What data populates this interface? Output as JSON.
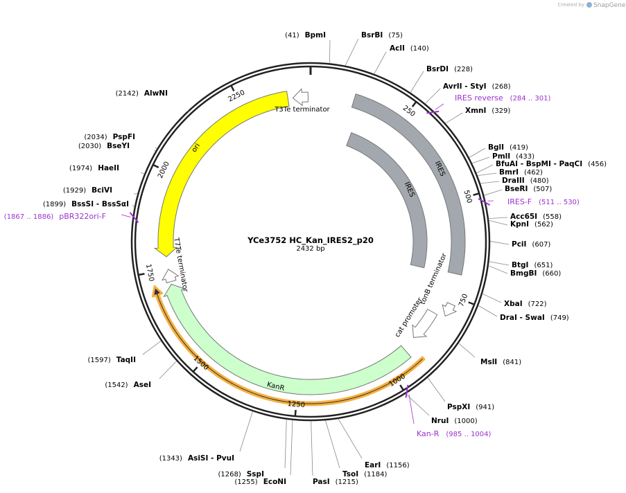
{
  "watermark": "Created by",
  "brand": "SnapGene",
  "title": "YCe3752 HC_Kan_IRES2_p20",
  "length": {
    "value": 2432,
    "label": "2432 bp"
  },
  "ticks": [
    250,
    500,
    750,
    1000,
    1250,
    1500,
    1750,
    2000,
    2250
  ],
  "enzymes": [
    {
      "name": "BpmI",
      "site": {
        "value": 41,
        "label": "(41)"
      }
    },
    {
      "name": "BsrBI",
      "site": {
        "value": 75,
        "label": "(75)"
      }
    },
    {
      "name": "AclI",
      "site": {
        "value": 140,
        "label": "(140)"
      }
    },
    {
      "name": "BsrDI",
      "site": {
        "value": 228,
        "label": "(228)"
      }
    },
    {
      "name": "AvrII - StyI",
      "site": {
        "value": 268,
        "label": "(268)"
      }
    },
    {
      "name": "XmnI",
      "site": {
        "value": 329,
        "label": "(329)"
      }
    },
    {
      "name": "BglI",
      "site": {
        "value": 419,
        "label": "(419)"
      }
    },
    {
      "name": "PmlI",
      "site": {
        "value": 433,
        "label": "(433)"
      }
    },
    {
      "name": "BfuAI - BspMI - PaqCI",
      "site": {
        "value": 456,
        "label": "(456)"
      }
    },
    {
      "name": "BmrI",
      "site": {
        "value": 462,
        "label": "(462)"
      }
    },
    {
      "name": "DraIII",
      "site": {
        "value": 480,
        "label": "(480)"
      }
    },
    {
      "name": "BseRI",
      "site": {
        "value": 507,
        "label": "(507)"
      }
    },
    {
      "name": "Acc65I",
      "site": {
        "value": 558,
        "label": "(558)"
      }
    },
    {
      "name": "KpnI",
      "site": {
        "value": 562,
        "label": "(562)"
      }
    },
    {
      "name": "PciI",
      "site": {
        "value": 607,
        "label": "(607)"
      }
    },
    {
      "name": "BtgI",
      "site": {
        "value": 651,
        "label": "(651)"
      }
    },
    {
      "name": "BmgBI",
      "site": {
        "value": 660,
        "label": "(660)"
      }
    },
    {
      "name": "XbaI",
      "site": {
        "value": 722,
        "label": "(722)"
      }
    },
    {
      "name": "DraI - SwaI",
      "site": {
        "value": 749,
        "label": "(749)"
      }
    },
    {
      "name": "MslI",
      "site": {
        "value": 841,
        "label": "(841)"
      }
    },
    {
      "name": "PspXI",
      "site": {
        "value": 941,
        "label": "(941)"
      }
    },
    {
      "name": "NruI",
      "site": {
        "value": 1000,
        "label": "(1000)"
      }
    },
    {
      "name": "EarI",
      "site": {
        "value": 1156,
        "label": "(1156)"
      }
    },
    {
      "name": "TsoI",
      "site": {
        "value": 1184,
        "label": "(1184)"
      }
    },
    {
      "name": "PasI",
      "site": {
        "value": 1215,
        "label": "(1215)"
      }
    },
    {
      "name": "EcoNI",
      "site": {
        "value": 1255,
        "label": "(1255)"
      }
    },
    {
      "name": "SspI",
      "site": {
        "value": 1268,
        "label": "(1268)"
      }
    },
    {
      "name": "AsiSI - PvuI",
      "site": {
        "value": 1343,
        "label": "(1343)"
      }
    },
    {
      "name": "AseI",
      "site": {
        "value": 1542,
        "label": "(1542)"
      }
    },
    {
      "name": "TaqII",
      "site": {
        "value": 1597,
        "label": "(1597)"
      }
    },
    {
      "name": "BssSI - BssSαI",
      "site": {
        "value": 1899,
        "label": "(1899)"
      }
    },
    {
      "name": "BciVI",
      "site": {
        "value": 1929,
        "label": "(1929)"
      }
    },
    {
      "name": "HaeII",
      "site": {
        "value": 1974,
        "label": "(1974)"
      }
    },
    {
      "name": "BseYI",
      "site": {
        "value": 2030,
        "label": "(2030)"
      }
    },
    {
      "name": "PspFI",
      "site": {
        "value": 2034,
        "label": "(2034)"
      }
    },
    {
      "name": "AlwNI",
      "site": {
        "value": 2142,
        "label": "(2142)"
      }
    }
  ],
  "primers": [
    {
      "name": "IRES reverse",
      "start": 284,
      "end": 301,
      "label": "(284 .. 301)"
    },
    {
      "name": "IRES-F",
      "start": 511,
      "end": 530,
      "label": "(511 .. 530)"
    },
    {
      "name": "pBR322ori-F",
      "start": 1867,
      "end": 1886,
      "label": "(1867 .. 1886)"
    },
    {
      "name": "Kan-R",
      "start": 985,
      "end": 1004,
      "label": "(985 .. 1004)"
    }
  ],
  "features": [
    {
      "name": "ori"
    },
    {
      "name": "T3Te terminator"
    },
    {
      "name": "T7Te terminator"
    },
    {
      "name": "IRES"
    },
    {
      "name": "IRES"
    },
    {
      "name": "KanR"
    },
    {
      "name": "cat promoter"
    },
    {
      "name": "tonB terminator"
    }
  ]
}
